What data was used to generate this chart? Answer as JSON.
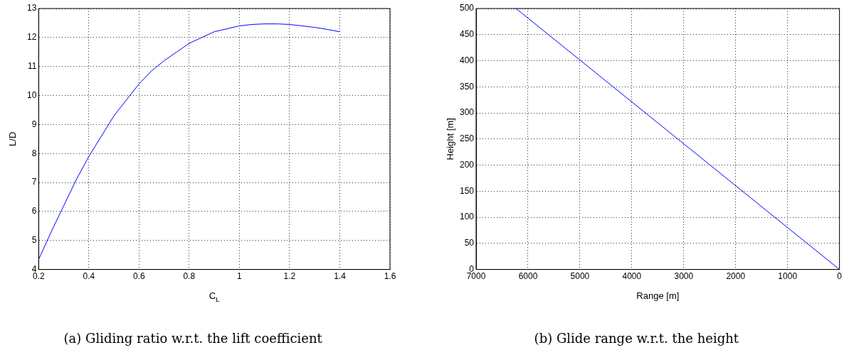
{
  "chart_data": [
    {
      "type": "line",
      "title": "(a) Gliding ratio w.r.t. the lift coefficient",
      "xlabel": "C$_{L}$",
      "ylabel": "L/D",
      "xlim": [
        0.2,
        1.6
      ],
      "xticks": [
        0.2,
        0.4,
        0.6,
        0.8,
        1,
        1.2,
        1.4,
        1.6
      ],
      "ylim": [
        4,
        13
      ],
      "yticks": [
        4,
        5,
        6,
        7,
        8,
        9,
        10,
        11,
        12,
        13
      ],
      "grid": true,
      "legend": false,
      "marker": "none",
      "line_style": "solid",
      "series": [
        {
          "color": "#0000ff",
          "x": [
            0.2,
            0.25,
            0.3,
            0.35,
            0.4,
            0.45,
            0.5,
            0.55,
            0.6,
            0.65,
            0.7,
            0.75,
            0.8,
            0.85,
            0.9,
            0.95,
            1.0,
            1.05,
            1.1,
            1.15,
            1.2,
            1.25,
            1.3,
            1.35,
            1.4
          ],
          "values": [
            4.35,
            5.3,
            6.2,
            7.1,
            7.9,
            8.6,
            9.3,
            9.85,
            10.4,
            10.85,
            11.2,
            11.5,
            11.8,
            12.0,
            12.2,
            12.3,
            12.4,
            12.45,
            12.47,
            12.47,
            12.45,
            12.4,
            12.35,
            12.28,
            12.2
          ]
        }
      ]
    },
    {
      "type": "line",
      "title": "(b) Glide range w.r.t. the height",
      "xlabel": "Range [m]",
      "ylabel": "Height [m]",
      "xlim": [
        7000,
        0
      ],
      "xticks": [
        7000,
        6000,
        5000,
        4000,
        3000,
        2000,
        1000,
        0
      ],
      "ylim": [
        0,
        500
      ],
      "yticks": [
        0,
        50,
        100,
        150,
        200,
        250,
        300,
        350,
        400,
        450,
        500
      ],
      "grid": true,
      "legend": false,
      "marker": "none",
      "line_style": "solid",
      "series": [
        {
          "color": "#0000ff",
          "x": [
            0,
            6230
          ],
          "values": [
            0,
            500
          ]
        }
      ]
    }
  ]
}
